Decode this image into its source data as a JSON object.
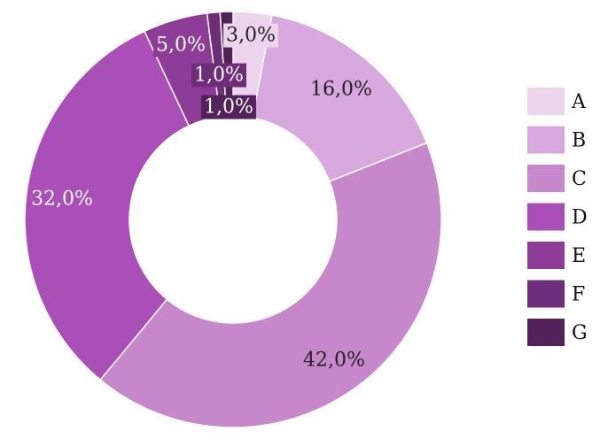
{
  "chart_data": {
    "type": "pie",
    "donut": true,
    "title": "",
    "categories": [
      "A",
      "B",
      "C",
      "D",
      "E",
      "F",
      "G"
    ],
    "values": [
      3.0,
      16.0,
      42.0,
      32.0,
      5.0,
      1.0,
      1.0
    ],
    "labels": [
      "3,0%",
      "16,0%",
      "42,0%",
      "32,0%",
      "5,0%",
      "1,0%",
      "1,0%"
    ],
    "colors": [
      "#ecd4ec",
      "#d7a8dd",
      "#c687cb",
      "#ab4fb8",
      "#8d3c97",
      "#6e2d78",
      "#52225a"
    ],
    "legend": {
      "position": "right",
      "entries": [
        "A",
        "B",
        "C",
        "D",
        "E",
        "F",
        "G"
      ]
    }
  }
}
